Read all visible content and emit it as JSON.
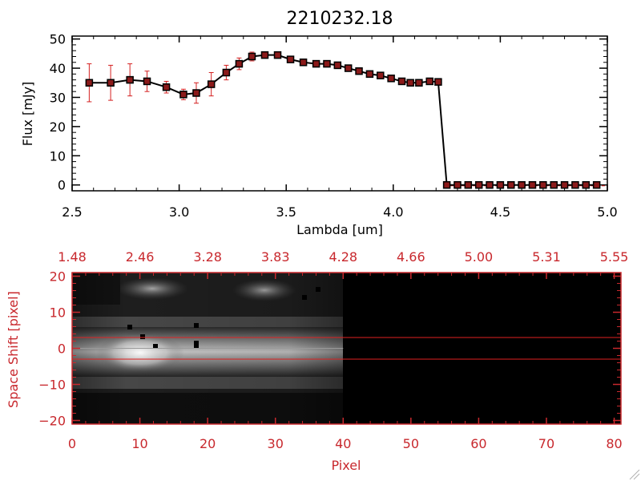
{
  "colors": {
    "background": "#ffffff",
    "line": "#000000",
    "marker_fill": "#8b1a1a",
    "error_bar": "#d42020",
    "bottom_axes": "#c8282d",
    "slit_line": "#e02020"
  },
  "chart_data": [
    {
      "type": "line",
      "title": "2210232.18",
      "xlabel": "Lambda [um]",
      "ylabel": "Flux [mJy]",
      "xlim": [
        2.5,
        5.0
      ],
      "ylim": [
        -2,
        51
      ],
      "x_ticks": [
        2.5,
        3.0,
        3.5,
        4.0,
        4.5,
        5.0
      ],
      "x_tick_labels": [
        "2.5",
        "3.0",
        "3.5",
        "4.0",
        "4.5",
        "5.0"
      ],
      "y_ticks": [
        0,
        10,
        20,
        30,
        40,
        50
      ],
      "y_tick_labels": [
        "0",
        "10",
        "20",
        "30",
        "40",
        "50"
      ],
      "grid": false,
      "series": [
        {
          "name": "Flux",
          "x": [
            2.58,
            2.68,
            2.77,
            2.85,
            2.94,
            3.02,
            3.08,
            3.15,
            3.22,
            3.28,
            3.34,
            3.4,
            3.46,
            3.52,
            3.58,
            3.64,
            3.69,
            3.74,
            3.79,
            3.84,
            3.89,
            3.94,
            3.99,
            4.04,
            4.08,
            4.12,
            4.17,
            4.21,
            4.25,
            4.3,
            4.35,
            4.4,
            4.45,
            4.5,
            4.55,
            4.6,
            4.65,
            4.7,
            4.75,
            4.8,
            4.85,
            4.9,
            4.95
          ],
          "y": [
            35,
            35,
            36,
            35.5,
            33.5,
            31,
            31.5,
            34.5,
            38.5,
            41.5,
            44,
            44.5,
            44.5,
            43,
            42,
            41.5,
            41.5,
            41,
            40,
            39,
            38,
            37.5,
            36.5,
            35.5,
            35,
            35,
            35.5,
            35.3,
            0,
            0,
            0,
            0,
            0,
            0,
            0,
            0,
            0,
            0,
            0,
            0,
            0,
            0,
            0
          ],
          "error": [
            6.5,
            6,
            5.5,
            3.5,
            2,
            1.8,
            3.5,
            4,
            2.5,
            2,
            1.5,
            1,
            0.8,
            0.8,
            0.6,
            0.6,
            0.6,
            0.6,
            0.6,
            0.6,
            0.6,
            0.6,
            0.6,
            0.6,
            0.6,
            0.6,
            0.6,
            0.6,
            0,
            0,
            0,
            0,
            0,
            0,
            0,
            0,
            0,
            0,
            0,
            0,
            0,
            0,
            0
          ]
        }
      ]
    },
    {
      "type": "heatmap",
      "xlabel": "Pixel",
      "ylabel": "Space Shift [pixel]",
      "xlim": [
        0,
        81
      ],
      "ylim": [
        -21,
        21
      ],
      "x_ticks": [
        0,
        10,
        20,
        30,
        40,
        50,
        60,
        70,
        80
      ],
      "x_tick_labels": [
        "0",
        "10",
        "20",
        "30",
        "40",
        "50",
        "60",
        "70",
        "80"
      ],
      "y_ticks": [
        -20,
        -10,
        0,
        10,
        20
      ],
      "y_tick_labels": [
        "−20",
        "−10",
        "0",
        "10",
        "20"
      ],
      "top_axis_ticks": [
        0,
        10,
        20,
        30,
        40,
        50,
        60,
        70,
        80
      ],
      "top_axis_labels": [
        "1.48",
        "2.46",
        "3.28",
        "3.83",
        "4.28",
        "4.66",
        "5.00",
        "5.31",
        "5.55"
      ],
      "slit_lines": [
        3,
        -3
      ],
      "center_line": 0,
      "data_extent_pixel": 40
    }
  ]
}
